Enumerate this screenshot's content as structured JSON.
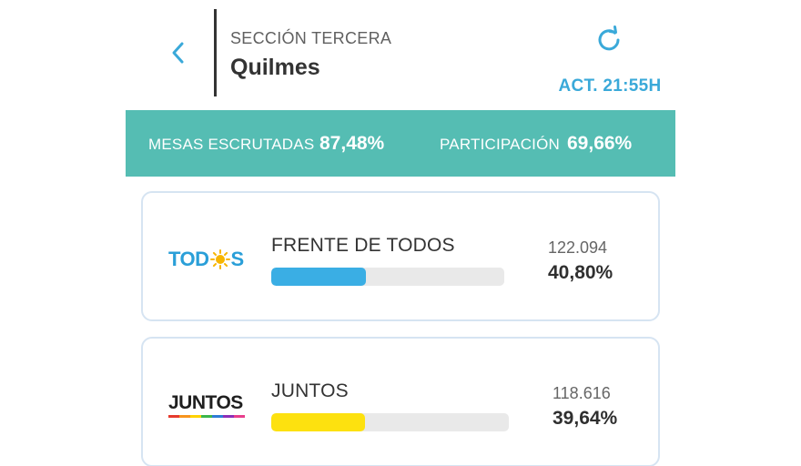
{
  "header": {
    "section": "SECCIÓN TERCERA",
    "district": "Quilmes",
    "updated": "ACT. 21:55H"
  },
  "stats": {
    "mesas_label": "MESAS ESCRUTADAS",
    "mesas_value": "87,48%",
    "participacion_label": "PARTICIPACIÓN",
    "participacion_value": "69,66%"
  },
  "parties": [
    {
      "logo_text_left": "TOD",
      "logo_text_right": "S",
      "name": "FRENTE DE TODOS",
      "votes": "122.094",
      "percent": "40,80%",
      "percent_value": 40.8,
      "color": "#3aaee4"
    },
    {
      "logo_text": "JUNTOS",
      "name": "JUNTOS",
      "votes": "118.616",
      "percent": "39,64%",
      "percent_value": 39.64,
      "color": "#fde10f"
    }
  ],
  "colors": {
    "accent": "#3aa9d9",
    "stats_bg": "#55bdb3",
    "sun": "#f7b500"
  },
  "icons": {
    "back": "chevron-left-icon",
    "refresh": "refresh-icon"
  }
}
